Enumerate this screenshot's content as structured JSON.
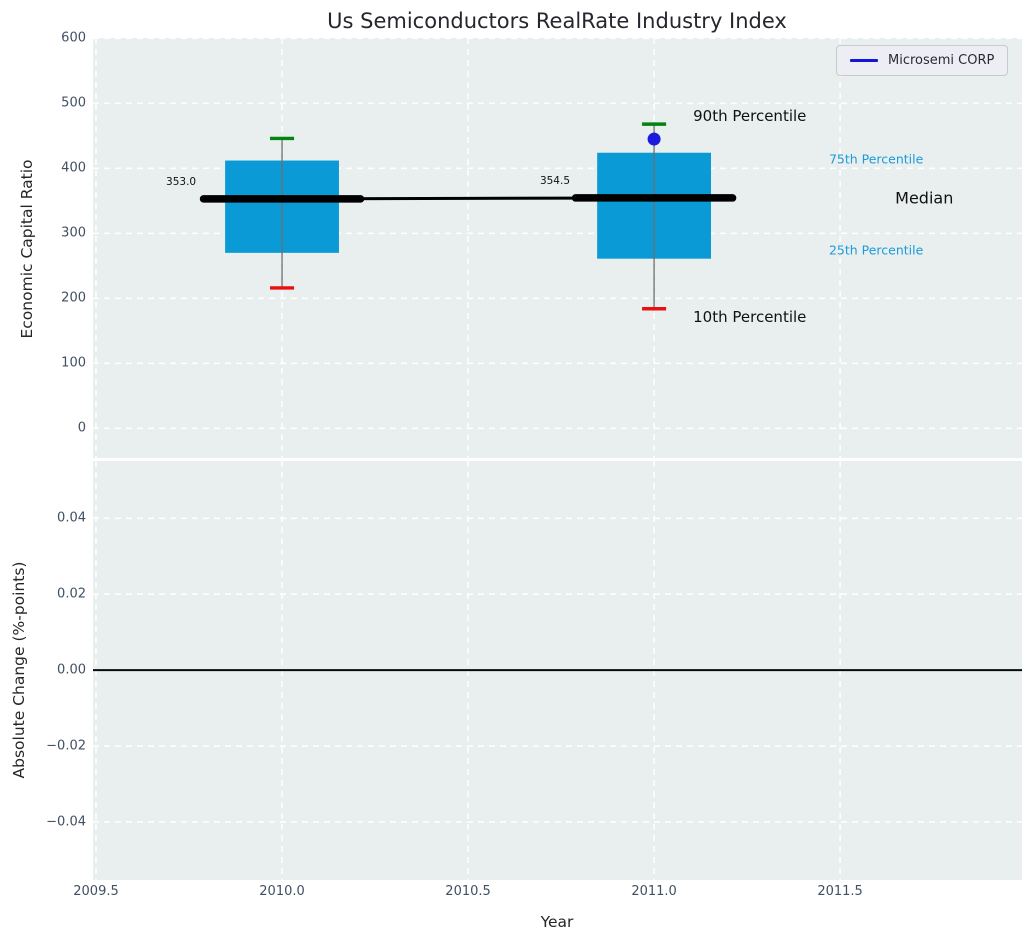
{
  "title": "Us Semiconductors RealRate Industry Index",
  "legend": {
    "label": "Microsemi CORP"
  },
  "colors": {
    "panel_bg": "#e9eeef",
    "grid": "#ffffff",
    "box_fill": "#0a9ad6",
    "median": "#000000",
    "whisker": "#6e6e6e",
    "cap_high": "#028312",
    "cap_low": "#e81010",
    "point": "#1b1bdd",
    "legend_line": "#1414dc",
    "tick_label": "#405063",
    "text": "#262626",
    "percentile_label": "#1a9cd8"
  },
  "chart_data": [
    {
      "type": "box",
      "panel": "top",
      "ylabel": "Economic Capital Ratio",
      "ylim": [
        -45.6,
        600.5
      ],
      "yticks": [
        {
          "v": 600,
          "label": "600"
        },
        {
          "v": 500,
          "label": "500"
        },
        {
          "v": 400,
          "label": "400"
        },
        {
          "v": 300,
          "label": "300"
        },
        {
          "v": 200,
          "label": "200"
        },
        {
          "v": 100,
          "label": "100"
        },
        {
          "v": 0,
          "label": "0"
        }
      ],
      "xlim": [
        2009.4919,
        2011.9889
      ],
      "xticks": [
        {
          "v": 2009.5,
          "label": "2009.5"
        },
        {
          "v": 2010.0,
          "label": "2010.0"
        },
        {
          "v": 2010.5,
          "label": "2010.5"
        },
        {
          "v": 2011.0,
          "label": "2011.0"
        },
        {
          "v": 2011.5,
          "label": "2011.5"
        }
      ],
      "grid": true,
      "boxes": [
        {
          "year": 2010,
          "p10": 216,
          "p25": 270,
          "median": 353.0,
          "p75": 412,
          "p90": 446,
          "median_label": "353.0"
        },
        {
          "year": 2011,
          "p10": 184,
          "p25": 261,
          "median": 354.5,
          "p75": 424,
          "p90": 468,
          "median_label": "354.5"
        }
      ],
      "median_trend": [
        {
          "year": 2010,
          "value": 353.0
        },
        {
          "year": 2011,
          "value": 354.5
        }
      ],
      "points": [
        {
          "name": "Microsemi CORP",
          "year": 2011,
          "value": 445
        }
      ],
      "annotations": [
        {
          "text": "90th Percentile",
          "x": 2011.105,
          "y": 480,
          "color": "#111111",
          "size": 15,
          "align": "left"
        },
        {
          "text": "75th Percentile",
          "x": 2011.47,
          "y": 414,
          "color": "#1a9cd8",
          "size": 12.5,
          "align": "left"
        },
        {
          "text": "Median",
          "x": 2011.648,
          "y": 355,
          "color": "#111111",
          "size": 16,
          "align": "left"
        },
        {
          "text": "25th Percentile",
          "x": 2011.47,
          "y": 275,
          "color": "#1a9cd8",
          "size": 12.5,
          "align": "left"
        },
        {
          "text": "10th Percentile",
          "x": 2011.105,
          "y": 171,
          "color": "#111111",
          "size": 15,
          "align": "left"
        },
        {
          "text": "353.0",
          "x": 2009.769,
          "y": 379,
          "color": "#111111",
          "size": 10.5,
          "align": "right"
        },
        {
          "text": "354.5",
          "x": 2010.774,
          "y": 381,
          "color": "#111111",
          "size": 10.5,
          "align": "right"
        }
      ]
    },
    {
      "type": "line",
      "panel": "bottom",
      "ylabel": "Absolute Change (%-points)",
      "xlabel": "Year",
      "ylim": [
        -0.0553,
        0.0551
      ],
      "yticks": [
        {
          "v": 0.04,
          "label": "0.04"
        },
        {
          "v": 0.02,
          "label": "0.02"
        },
        {
          "v": 0.0,
          "label": "0.00"
        },
        {
          "v": -0.02,
          "label": "−0.02"
        },
        {
          "v": -0.04,
          "label": "−0.04"
        }
      ],
      "xlim": [
        2009.4919,
        2011.9889
      ],
      "xticks": [
        {
          "v": 2009.5,
          "label": "2009.5"
        },
        {
          "v": 2010.0,
          "label": "2010.0"
        },
        {
          "v": 2010.5,
          "label": "2010.5"
        },
        {
          "v": 2011.0,
          "label": "2011.0"
        },
        {
          "v": 2011.5,
          "label": "2011.5"
        }
      ],
      "grid": true,
      "zero_line": true,
      "series": []
    }
  ]
}
